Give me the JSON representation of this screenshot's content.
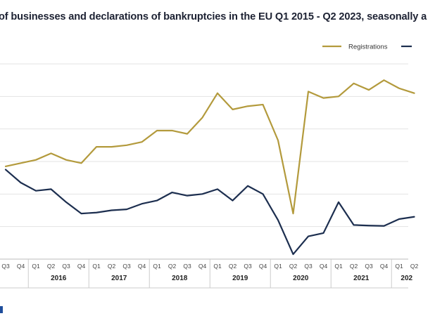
{
  "chart_data": {
    "type": "line",
    "title": "of businesses and declarations of bankruptcies in the EU Q1 2015 - Q2 2023, seasonally a",
    "x": [
      "Q3",
      "Q4",
      "Q1",
      "Q2",
      "Q3",
      "Q4",
      "Q1",
      "Q2",
      "Q3",
      "Q4",
      "Q1",
      "Q2",
      "Q3",
      "Q4",
      "Q1",
      "Q2",
      "Q3",
      "Q4",
      "Q1",
      "Q2",
      "Q3",
      "Q4",
      "Q1",
      "Q2",
      "Q3",
      "Q4",
      "Q1",
      "Q2"
    ],
    "years": [
      {
        "label": "2016",
        "from": 2,
        "to": 5
      },
      {
        "label": "2017",
        "from": 6,
        "to": 9
      },
      {
        "label": "2018",
        "from": 10,
        "to": 13
      },
      {
        "label": "2019",
        "from": 14,
        "to": 17
      },
      {
        "label": "2020",
        "from": 18,
        "to": 21
      },
      {
        "label": "2021",
        "from": 22,
        "to": 25
      },
      {
        "label": "202",
        "from": 26,
        "to": 27
      }
    ],
    "series": [
      {
        "name": "Registrations",
        "color": "#b39a3c",
        "values": [
          108.5,
          109.5,
          110.5,
          112.5,
          110.5,
          109.5,
          114.5,
          114.5,
          115,
          116,
          119.5,
          119.5,
          118.5,
          123.5,
          131,
          126,
          127,
          127.5,
          116.5,
          94,
          131.5,
          129.5,
          130,
          134,
          132,
          135,
          132.5,
          131
        ]
      },
      {
        "name": "",
        "color": "#1c2e4f",
        "values": [
          107.5,
          103.5,
          101,
          101.5,
          97.5,
          94,
          94.3,
          95,
          95.3,
          97,
          98,
          100.5,
          99.5,
          100,
          101.5,
          98,
          102.5,
          100,
          92,
          81.5,
          87,
          88,
          97.5,
          90.5,
          90.3,
          90.2,
          92.3,
          93
        ]
      }
    ],
    "ylim": [
      80,
      140
    ],
    "grid": true,
    "legend": "top-right"
  }
}
